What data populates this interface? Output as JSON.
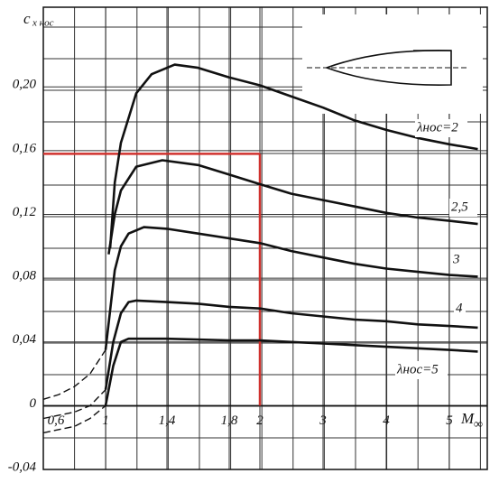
{
  "chart_data": {
    "type": "line",
    "y_label": "c",
    "y_label_sub": "x нос",
    "x_label": "M",
    "x_label_sub": "∞",
    "xlim": [
      0.6,
      5.6
    ],
    "ylim": [
      -0.04,
      0.25
    ],
    "xticks": [
      {
        "value": 0.6,
        "label": "0,6"
      },
      1,
      {
        "value": 1.4,
        "label": "1,4"
      },
      {
        "value": 1.8,
        "label": "1,8"
      },
      2,
      3,
      4,
      5
    ],
    "yticks": [
      {
        "value": -0.04,
        "label": "-0,04"
      },
      0,
      {
        "value": 0.04,
        "label": "0,04"
      },
      {
        "value": 0.08,
        "label": "0,08"
      },
      {
        "value": 0.12,
        "label": "0,12"
      },
      {
        "value": 0.16,
        "label": "0,16"
      },
      {
        "value": 0.2,
        "label": "0,20"
      }
    ],
    "grid": true,
    "reference": {
      "x": 2,
      "y": 0.158,
      "color": "#d0312d"
    },
    "series": [
      {
        "name": "λнос=2",
        "color": "#111111",
        "x": [
          1.03,
          1.06,
          1.1,
          1.2,
          1.3,
          1.45,
          1.6,
          1.8,
          2,
          2.5,
          3,
          3.5,
          4,
          4.5,
          5,
          5.45
        ],
        "values": [
          0.099,
          0.14,
          0.165,
          0.196,
          0.208,
          0.214,
          0.212,
          0.206,
          0.201,
          0.194,
          0.187,
          0.179,
          0.173,
          0.168,
          0.164,
          0.161
        ]
      },
      {
        "name": "2,5",
        "color": "#111111",
        "x": [
          1.02,
          1.06,
          1.1,
          1.2,
          1.37,
          1.6,
          1.8,
          2,
          2.5,
          3,
          3.5,
          4,
          4.5,
          5,
          5.45
        ],
        "values": [
          0.095,
          0.12,
          0.135,
          0.15,
          0.154,
          0.151,
          0.145,
          0.139,
          0.133,
          0.129,
          0.125,
          0.121,
          0.118,
          0.116,
          0.114
        ]
      },
      {
        "name": "3",
        "color": "#111111",
        "x": [
          1.0,
          1.03,
          1.06,
          1.1,
          1.15,
          1.25,
          1.4,
          1.6,
          1.8,
          2,
          2.5,
          3,
          3.5,
          4,
          4.5,
          5,
          5.45
        ],
        "values": [
          0.035,
          0.06,
          0.085,
          0.1,
          0.108,
          0.112,
          0.111,
          0.108,
          0.105,
          0.102,
          0.097,
          0.093,
          0.089,
          0.086,
          0.084,
          0.082,
          0.081
        ],
        "extrapolated": {
          "x": [
            0.6,
            0.7,
            0.8,
            0.9,
            1.0
          ],
          "values": [
            0.004,
            0.007,
            0.012,
            0.02,
            0.035
          ]
        }
      },
      {
        "name": "4",
        "color": "#111111",
        "x": [
          1.0,
          1.05,
          1.1,
          1.15,
          1.2,
          1.4,
          1.6,
          1.8,
          2,
          2.5,
          3,
          3.5,
          4,
          4.5,
          5,
          5.45
        ],
        "values": [
          0.01,
          0.04,
          0.058,
          0.065,
          0.066,
          0.065,
          0.064,
          0.062,
          0.061,
          0.058,
          0.056,
          0.054,
          0.053,
          0.051,
          0.05,
          0.049
        ],
        "extrapolated": {
          "x": [
            0.6,
            0.8,
            0.9,
            1.0
          ],
          "values": [
            -0.008,
            -0.004,
            0.0,
            0.01
          ]
        }
      },
      {
        "name": "λнос=5",
        "color": "#111111",
        "x": [
          1.0,
          1.05,
          1.1,
          1.15,
          1.4,
          1.8,
          2,
          2.5,
          3,
          3.5,
          4,
          4.5,
          5,
          5.45
        ],
        "values": [
          0.0,
          0.025,
          0.04,
          0.042,
          0.042,
          0.041,
          0.041,
          0.04,
          0.039,
          0.038,
          0.037,
          0.036,
          0.035,
          0.034
        ],
        "extrapolated": {
          "x": [
            0.6,
            0.8,
            0.9,
            1.0
          ],
          "values": [
            -0.017,
            -0.013,
            -0.008,
            0.0
          ]
        }
      }
    ]
  }
}
